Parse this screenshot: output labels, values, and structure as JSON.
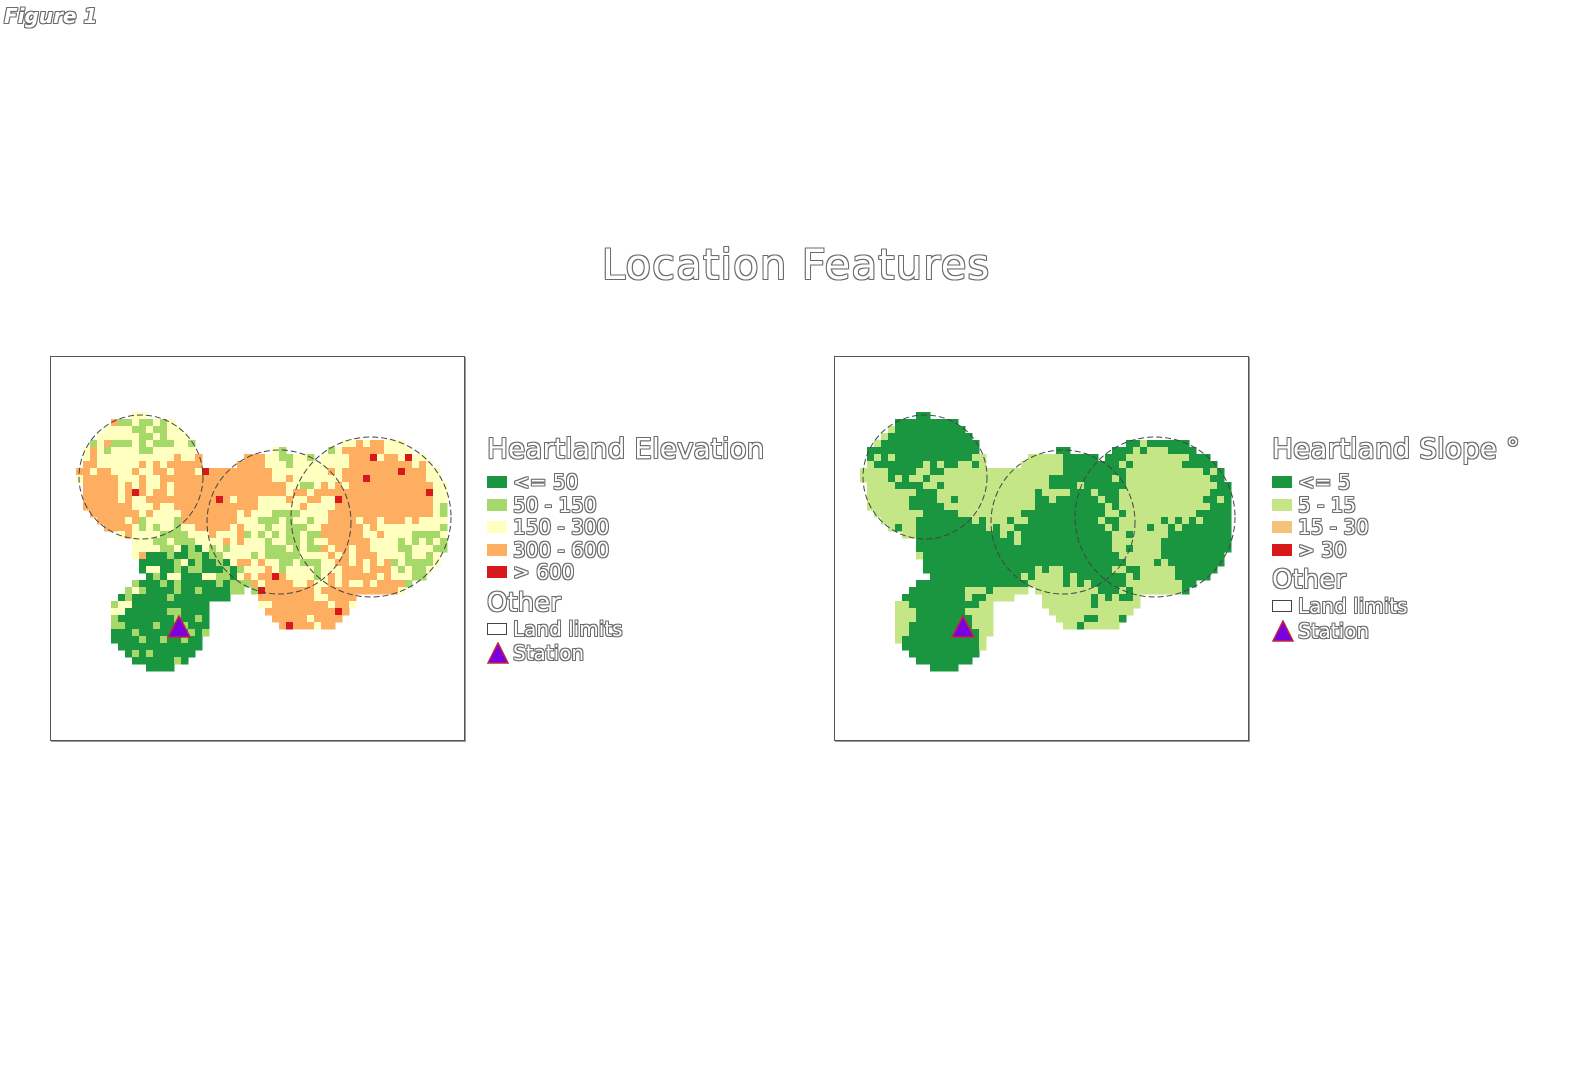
{
  "figure_label": "Figure 1",
  "title": "Location Features",
  "maps": [
    {
      "legend_title": "Heartland Elevation",
      "classes": [
        {
          "label": "<= 50",
          "color": "#1a9641"
        },
        {
          "label": "50 - 150",
          "color": "#a6d96a"
        },
        {
          "label": "150 - 300",
          "color": "#ffffc0"
        },
        {
          "label": "300 - 600",
          "color": "#fdae61"
        },
        {
          "label": "> 600",
          "color": "#d7191c"
        }
      ],
      "other_title": "Other",
      "land_limits_label": "Land limits",
      "station_label": "Station"
    },
    {
      "legend_title": "Heartland Slope °",
      "classes": [
        {
          "label": "<= 5",
          "color": "#1a9641"
        },
        {
          "label": "5 - 15",
          "color": "#c4e687"
        },
        {
          "label": "15 - 30",
          "color": "#f4c27a"
        },
        {
          "label": "> 30",
          "color": "#d7191c"
        }
      ],
      "other_title": "Other",
      "land_limits_label": "Land limits",
      "station_label": "Station"
    }
  ],
  "station_color": "#7b00e0"
}
